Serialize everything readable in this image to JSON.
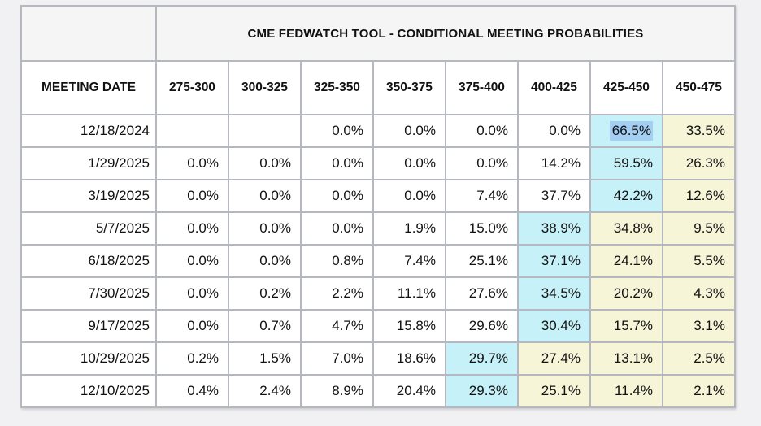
{
  "colors": {
    "page_background": "#f1f1f3",
    "panel_background": "#f5f5f6",
    "cell_background": "#ffffff",
    "border": "#b6b8c1",
    "text": "#111111",
    "cyan_highlight": "#c7f1f8",
    "yellow_highlight": "#f6f5d8",
    "text_selection_blue": "#a4cff2"
  },
  "chart_data": {
    "type": "table",
    "title": "CME FEDWATCH TOOL - CONDITIONAL MEETING PROBABILITIES",
    "columns": [
      "MEETING DATE",
      "275-300",
      "300-325",
      "325-350",
      "350-375",
      "375-400",
      "400-425",
      "425-450",
      "450-475"
    ],
    "rows": [
      {
        "meeting_date": "12/18/2024",
        "values": [
          "",
          "",
          "0.0%",
          "0.0%",
          "0.0%",
          "0.0%",
          "66.5%",
          "33.5%"
        ],
        "highlights": [
          "none",
          "none",
          "none",
          "none",
          "none",
          "none",
          "selected",
          "yellow"
        ]
      },
      {
        "meeting_date": "1/29/2025",
        "values": [
          "0.0%",
          "0.0%",
          "0.0%",
          "0.0%",
          "0.0%",
          "14.2%",
          "59.5%",
          "26.3%"
        ],
        "highlights": [
          "none",
          "none",
          "none",
          "none",
          "none",
          "none",
          "cyan",
          "yellow"
        ]
      },
      {
        "meeting_date": "3/19/2025",
        "values": [
          "0.0%",
          "0.0%",
          "0.0%",
          "0.0%",
          "7.4%",
          "37.7%",
          "42.2%",
          "12.6%"
        ],
        "highlights": [
          "none",
          "none",
          "none",
          "none",
          "none",
          "none",
          "cyan",
          "yellow"
        ]
      },
      {
        "meeting_date": "5/7/2025",
        "values": [
          "0.0%",
          "0.0%",
          "0.0%",
          "1.9%",
          "15.0%",
          "38.9%",
          "34.8%",
          "9.5%"
        ],
        "highlights": [
          "none",
          "none",
          "none",
          "none",
          "none",
          "cyan",
          "yellow",
          "yellow"
        ]
      },
      {
        "meeting_date": "6/18/2025",
        "values": [
          "0.0%",
          "0.0%",
          "0.8%",
          "7.4%",
          "25.1%",
          "37.1%",
          "24.1%",
          "5.5%"
        ],
        "highlights": [
          "none",
          "none",
          "none",
          "none",
          "none",
          "cyan",
          "yellow",
          "yellow"
        ]
      },
      {
        "meeting_date": "7/30/2025",
        "values": [
          "0.0%",
          "0.2%",
          "2.2%",
          "11.1%",
          "27.6%",
          "34.5%",
          "20.2%",
          "4.3%"
        ],
        "highlights": [
          "none",
          "none",
          "none",
          "none",
          "none",
          "cyan",
          "yellow",
          "yellow"
        ]
      },
      {
        "meeting_date": "9/17/2025",
        "values": [
          "0.0%",
          "0.7%",
          "4.7%",
          "15.8%",
          "29.6%",
          "30.4%",
          "15.7%",
          "3.1%"
        ],
        "highlights": [
          "none",
          "none",
          "none",
          "none",
          "none",
          "cyan",
          "yellow",
          "yellow"
        ]
      },
      {
        "meeting_date": "10/29/2025",
        "values": [
          "0.2%",
          "1.5%",
          "7.0%",
          "18.6%",
          "29.7%",
          "27.4%",
          "13.1%",
          "2.5%"
        ],
        "highlights": [
          "none",
          "none",
          "none",
          "none",
          "cyan",
          "yellow",
          "yellow",
          "yellow"
        ]
      },
      {
        "meeting_date": "12/10/2025",
        "values": [
          "0.4%",
          "2.4%",
          "8.9%",
          "20.4%",
          "29.3%",
          "25.1%",
          "11.4%",
          "2.1%"
        ],
        "highlights": [
          "none",
          "none",
          "none",
          "none",
          "cyan",
          "yellow",
          "yellow",
          "yellow"
        ]
      }
    ]
  }
}
